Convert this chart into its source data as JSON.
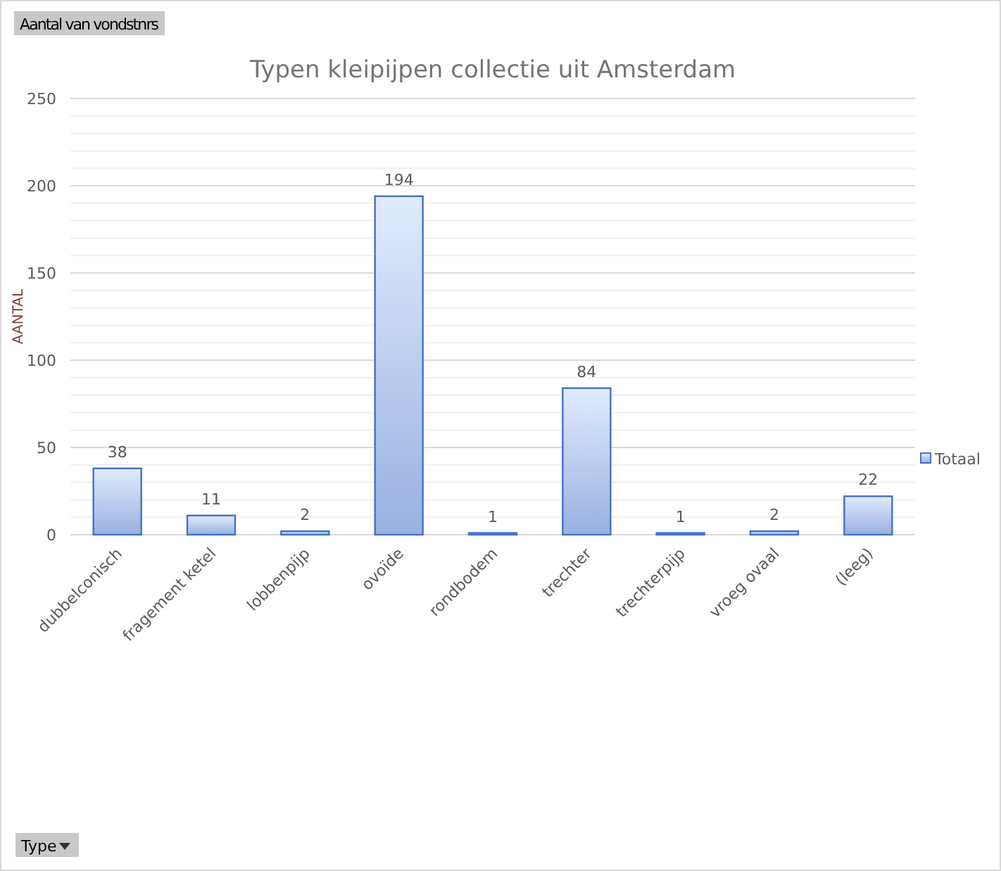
{
  "chart_data": {
    "type": "bar",
    "title": "Typen kleipijpen collectie uit Amsterdam",
    "ylabel": "AANTAL",
    "categories": [
      "dubbelconisch",
      "fragement ketel",
      "lobbenpijp",
      "ovoïde",
      "rondbodem",
      "trechter",
      "trechterpijp",
      "vroeg ovaal",
      "(leeg)"
    ],
    "series": [
      {
        "name": "Totaal",
        "color": "#4472c4",
        "values": [
          38,
          11,
          2,
          194,
          1,
          84,
          1,
          2,
          22
        ]
      }
    ],
    "ylim": [
      0,
      250
    ],
    "yticks": [
      0,
      {
        "value": 10,
        "label": null
      },
      {
        "value": 20,
        "label": null
      },
      {
        "value": 30,
        "label": null
      },
      {
        "value": 40,
        "label": null
      },
      50,
      {
        "value": 60,
        "label": null
      },
      {
        "value": 70,
        "label": null
      },
      {
        "value": 80,
        "label": null
      },
      {
        "value": 90,
        "label": null
      },
      100,
      {
        "value": 110,
        "label": null
      },
      {
        "value": 120,
        "label": null
      },
      {
        "value": 130,
        "label": null
      },
      {
        "value": 140,
        "label": null
      },
      150,
      {
        "value": 160,
        "label": null
      },
      {
        "value": 170,
        "label": null
      },
      {
        "value": 180,
        "label": null
      },
      {
        "value": 190,
        "label": null
      },
      200,
      {
        "value": 210,
        "label": null
      },
      {
        "value": 220,
        "label": null
      },
      {
        "value": 230,
        "label": null
      },
      {
        "value": 240,
        "label": null
      },
      250
    ],
    "grid": "y",
    "legend": "right",
    "data_labels": true,
    "annotations": [
      "Aantal van vondstnrs",
      "Type"
    ]
  }
}
